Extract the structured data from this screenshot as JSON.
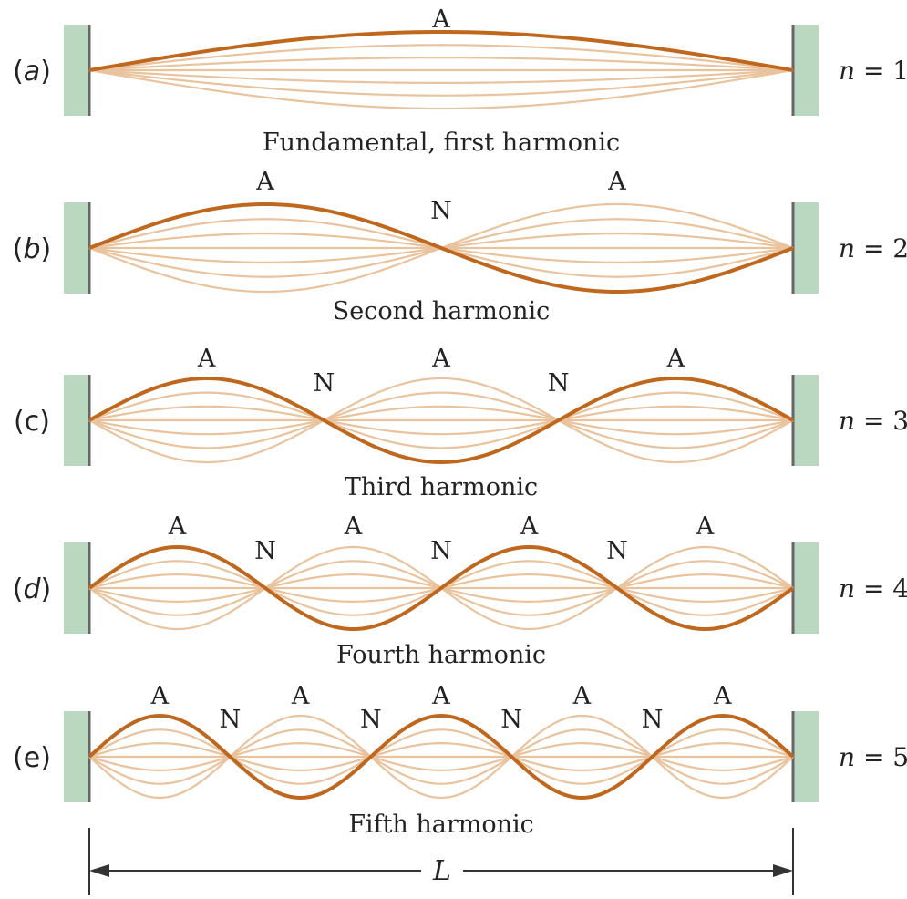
{
  "colors": {
    "string_main": "#c0671e",
    "string_ghost": "#e9c39d",
    "wall_fill": "#b9d8bf",
    "wall_edge": "#666666",
    "text": "#222222"
  },
  "node_label": "N",
  "antinode_label": "A",
  "length_label": "L",
  "harmonics": [
    {
      "case": "(a)",
      "case_letter": "a",
      "n_text": "n = 1",
      "n": 1,
      "caption": "Fundamental, first harmonic"
    },
    {
      "case": "(b)",
      "case_letter": "b",
      "n_text": "n = 2",
      "n": 2,
      "caption": "Second harmonic"
    },
    {
      "case": "(c)",
      "case_letter": "c",
      "n_text": "n = 3",
      "n": 3,
      "caption": "Third harmonic"
    },
    {
      "case": "(d)",
      "case_letter": "d",
      "n_text": "n = 4",
      "n": 4,
      "caption": "Fourth harmonic"
    },
    {
      "case": "(e)",
      "case_letter": "e",
      "n_text": "n = 5",
      "n": 5,
      "caption": "Fifth harmonic"
    }
  ]
}
